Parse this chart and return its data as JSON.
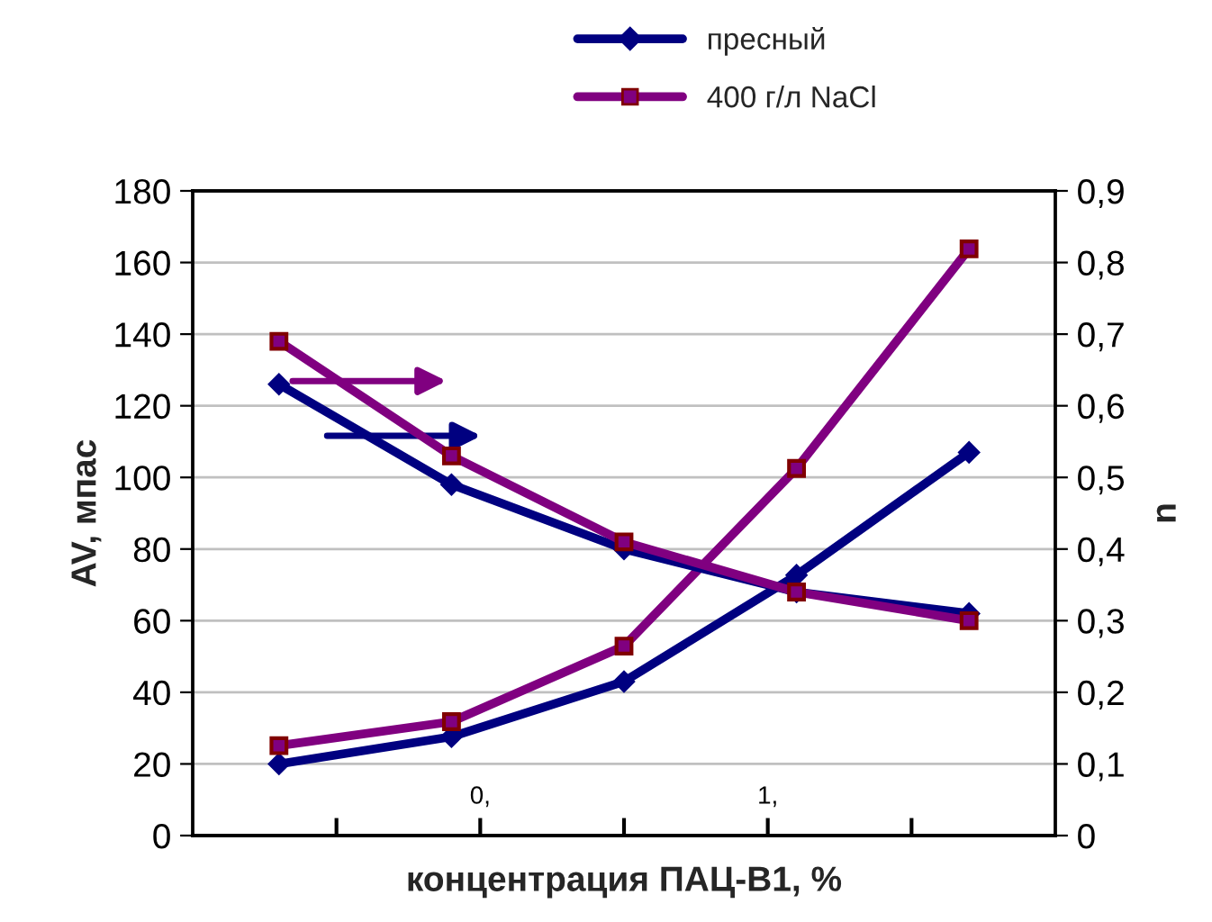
{
  "chart_data": {
    "type": "line",
    "xlabel": "концентрация ПАЦ-В1, %",
    "ylabel": "AV, мпас",
    "y2label": "n",
    "x": [
      0.15,
      0.45,
      0.75,
      1.05,
      1.35
    ],
    "xlim": [
      0,
      1.5
    ],
    "xticks": [
      {
        "value": 0.25,
        "label": null
      },
      {
        "value": 0.5,
        "label": "0,"
      },
      {
        "value": 0.75,
        "label": null
      },
      {
        "value": 1.0,
        "label": "1,"
      },
      {
        "value": 1.25,
        "label": null
      }
    ],
    "ylim": [
      0,
      180
    ],
    "yticks": [
      0,
      20,
      40,
      60,
      80,
      100,
      120,
      140,
      160,
      180
    ],
    "y2lim": [
      0,
      0.9
    ],
    "y2ticks": [
      {
        "value": 0,
        "label": "0"
      },
      {
        "value": 0.1,
        "label": "0,1"
      },
      {
        "value": 0.2,
        "label": "0,2"
      },
      {
        "value": 0.3,
        "label": "0,3"
      },
      {
        "value": 0.4,
        "label": "0,4"
      },
      {
        "value": 0.5,
        "label": "0,5"
      },
      {
        "value": 0.6,
        "label": "0,6"
      },
      {
        "value": 0.7,
        "label": "0,7"
      },
      {
        "value": 0.8,
        "label": "0,8"
      },
      {
        "value": 0.9,
        "label": "0,9"
      }
    ],
    "series": [
      {
        "name": "пресный",
        "color": "#000080",
        "marker": "diamond",
        "values": [
          20,
          27.6,
          43,
          72.7,
          107
        ]
      },
      {
        "name": "400 г/л NaCl",
        "color": "#800080",
        "marker": "square",
        "values": [
          25.1,
          31.8,
          52.9,
          102.5,
          163.8
        ]
      },
      {
        "color": "#000080",
        "marker": "diamond",
        "axis": "y2",
        "values": [
          0.63,
          0.49,
          0.4,
          0.34,
          0.31
        ]
      },
      {
        "color": "#800080",
        "marker": "square",
        "axis": "y2",
        "values": [
          0.69,
          0.53,
          0.41,
          0.34,
          0.3
        ]
      }
    ],
    "grid": "y",
    "legend": "top"
  }
}
